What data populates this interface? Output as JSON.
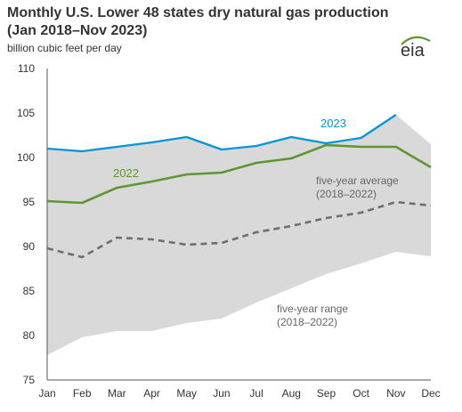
{
  "title": "Monthly U.S. Lower 48 states dry natural gas production (Jan 2018–Nov 2023)",
  "subtitle": "billion cubic feet per day",
  "logo_text": "eia",
  "colors": {
    "series_2023": "#0096d7",
    "series_2022": "#5d9732",
    "average": "#6d6e70",
    "range_fill": "#d9d9d9",
    "logo_green": "#5d9732"
  },
  "chart_data": {
    "type": "line",
    "categories": [
      "Jan",
      "Feb",
      "Mar",
      "Apr",
      "May",
      "Jun",
      "Jul",
      "Aug",
      "Sep",
      "Oct",
      "Nov",
      "Dec"
    ],
    "ylabel": "billion cubic feet per day",
    "ylim": [
      75,
      110
    ],
    "yticks": [
      75,
      80,
      85,
      90,
      95,
      100,
      105,
      110
    ],
    "grid": false,
    "series": [
      {
        "name": "2023",
        "values": [
          101.0,
          100.7,
          101.2,
          101.7,
          102.3,
          100.9,
          101.3,
          102.3,
          101.6,
          102.2,
          104.8,
          null
        ]
      },
      {
        "name": "2022",
        "values": [
          95.1,
          94.9,
          96.6,
          97.3,
          98.1,
          98.3,
          99.4,
          99.9,
          101.4,
          101.2,
          101.2,
          98.9
        ]
      },
      {
        "name": "five-year average\n(2018–2022)",
        "values": [
          89.8,
          88.8,
          91.0,
          90.8,
          90.2,
          90.4,
          91.6,
          92.3,
          93.2,
          93.8,
          95.0,
          94.6
        ]
      }
    ],
    "range": {
      "name": "five-year range\n(2018–2022)",
      "low": [
        77.8,
        79.8,
        80.5,
        80.5,
        81.4,
        81.9,
        83.7,
        85.3,
        86.9,
        88.1,
        89.4,
        88.9
      ],
      "high": [
        101.0,
        100.7,
        101.2,
        101.7,
        102.3,
        100.9,
        101.3,
        102.3,
        101.6,
        102.2,
        104.8,
        101.5
      ]
    },
    "annotations": {
      "label_2023": "2023",
      "label_2022": "2022",
      "avg_line1": "five-year average",
      "avg_line2": "(2018–2022)",
      "range_line1": "five-year range",
      "range_line2": "(2018–2022)"
    }
  }
}
